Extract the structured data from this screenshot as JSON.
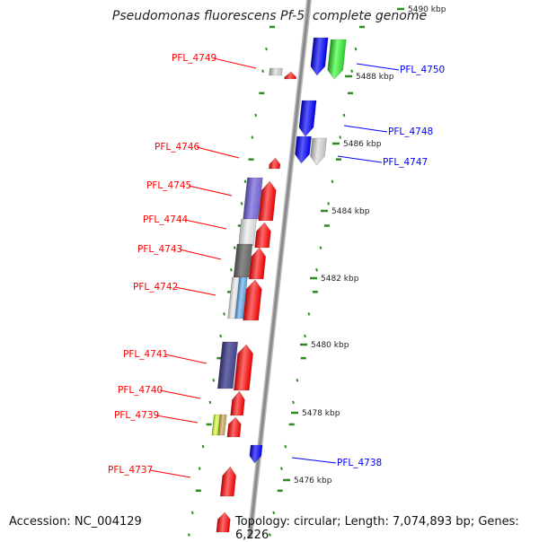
{
  "title": "Pseudomonas fluorescens Pf-5, complete genome",
  "footer": {
    "accession_label": "Accession:",
    "accession": "NC_004129",
    "topology_label": "Topology:",
    "topology": "circular",
    "length_label": "Length:",
    "length": "7,074,893 bp",
    "genes_label": "Genes:",
    "genes": "6,226"
  },
  "colors": {
    "forward": "#ff0000",
    "reverse": "#0000ff",
    "backbone": "#8a8a8a",
    "dots": "#2e8b22"
  },
  "tick_labels": [
    "5490 kbp",
    "5488 kbp",
    "5486 kbp",
    "5484 kbp",
    "5482 kbp",
    "5480 kbp",
    "5478 kbp",
    "5476 kbp"
  ],
  "forward_labels": [
    "PFL_4749",
    "PFL_4746",
    "PFL_4745",
    "PFL_4744",
    "PFL_4743",
    "PFL_4742",
    "PFL_4741",
    "PFL_4740",
    "PFL_4739",
    "PFL_4737"
  ],
  "reverse_labels": [
    "PFL_4750",
    "PFL_4748",
    "PFL_4747",
    "PFL_4738"
  ]
}
